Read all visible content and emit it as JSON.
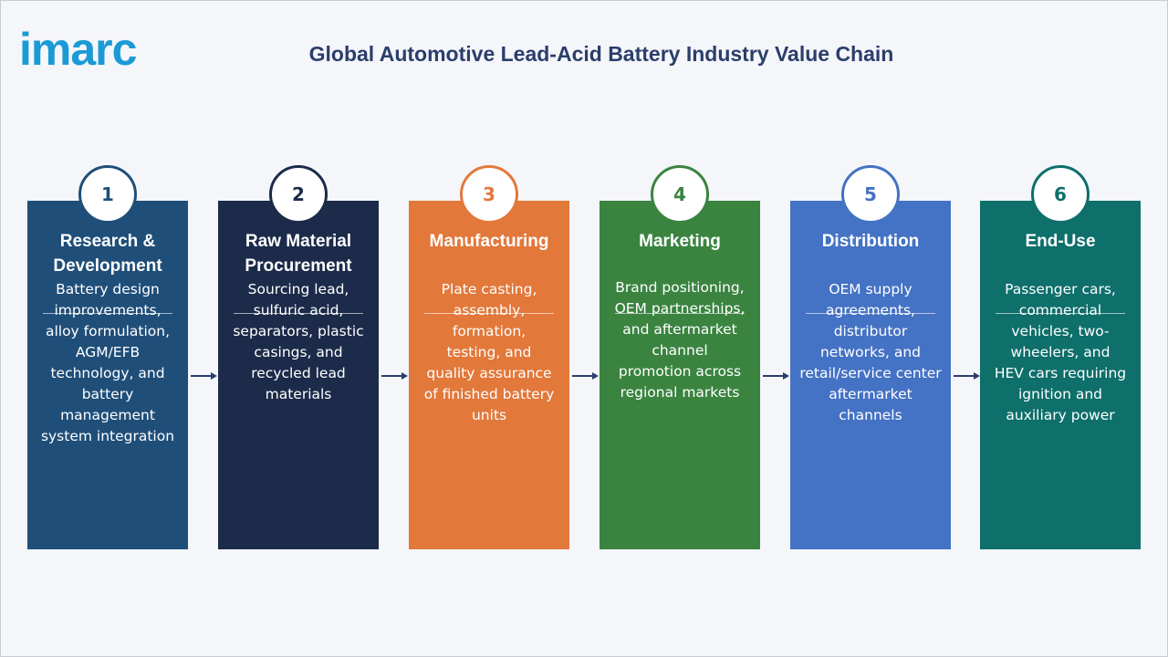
{
  "logo": "imarc",
  "title": "Global Automotive Lead-Acid Battery Industry Value Chain",
  "stages": [
    {
      "number": "1",
      "title": [
        "Research &",
        "Development"
      ],
      "description": [
        "Battery design",
        "improvements,",
        "alloy formulation,",
        "AGM/EFB",
        "technology, and",
        "battery",
        "management",
        "system integration"
      ]
    },
    {
      "number": "2",
      "title": [
        "Raw Material",
        "Procurement"
      ],
      "description": [
        "Sourcing lead,",
        "sulfuric acid,",
        "separators, plastic",
        "casings, and",
        "recycled lead",
        "materials"
      ]
    },
    {
      "number": "3",
      "title": [
        "Manufacturing"
      ],
      "description": [
        "Plate casting,",
        "assembly,",
        "formation,",
        "testing, and",
        "quality assurance",
        "of finished battery",
        "units"
      ]
    },
    {
      "number": "4",
      "title": [
        "Marketing"
      ],
      "description": [
        "Brand positioning,",
        "OEM partnerships,",
        "and aftermarket",
        "channel",
        "promotion across",
        "regional markets"
      ]
    },
    {
      "number": "5",
      "title": [
        "Distribution"
      ],
      "description": [
        "OEM supply",
        "agreements,",
        "distributor",
        "networks, and",
        "retail/service center",
        "aftermarket",
        "channels"
      ]
    },
    {
      "number": "6",
      "title": [
        "End-Use"
      ],
      "description": [
        "Passenger cars,",
        "commercial",
        "vehicles, two-",
        "wheelers, and",
        "HEV cars requiring",
        "ignition and",
        "auxiliary power"
      ]
    }
  ]
}
